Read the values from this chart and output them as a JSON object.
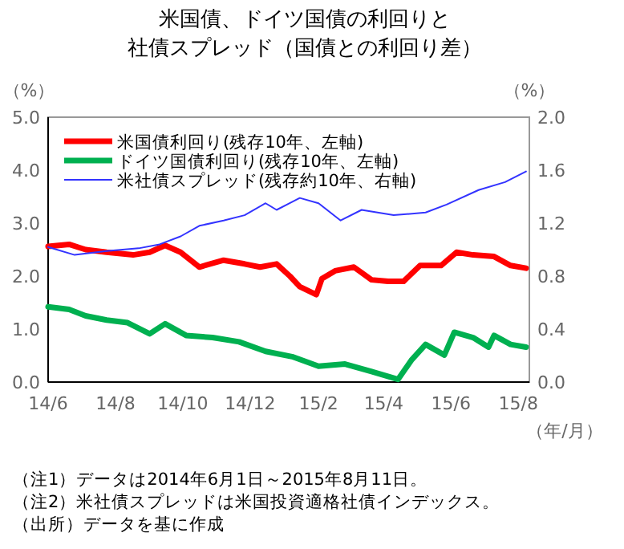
{
  "chart_data": {
    "type": "line",
    "title": "米国債、ドイツ国債の利回りと",
    "subtitle": "社債スプレッド（国債との利回り差）",
    "ylabel": "（%）",
    "y2label": "（%）",
    "xlabel": "（年/月）",
    "xlim": [
      "2014-06-01",
      "2015-08-11"
    ],
    "xticks": [
      {
        "value": "2014-06-01",
        "label": "14/6"
      },
      {
        "value": "2014-08-01",
        "label": "14/8"
      },
      {
        "value": "2014-10-01",
        "label": "14/10"
      },
      {
        "value": "2014-12-01",
        "label": "14/12"
      },
      {
        "value": "2015-02-01",
        "label": "15/2"
      },
      {
        "value": "2015-04-01",
        "label": "15/4"
      },
      {
        "value": "2015-06-01",
        "label": "15/6"
      },
      {
        "value": "2015-08-01",
        "label": "15/8"
      }
    ],
    "ylim": [
      0,
      5
    ],
    "yticks": [
      {
        "value": 0,
        "label": "0.0"
      },
      {
        "value": 1,
        "label": "1.0"
      },
      {
        "value": 2,
        "label": "2.0"
      },
      {
        "value": 3,
        "label": "3.0"
      },
      {
        "value": 4,
        "label": "4.0"
      },
      {
        "value": 5,
        "label": "5.0"
      }
    ],
    "y2lim": [
      0,
      2
    ],
    "y2ticks": [
      {
        "value": 0,
        "label": "0.0"
      },
      {
        "value": 0.4,
        "label": "0.4"
      },
      {
        "value": 0.8,
        "label": "0.8"
      },
      {
        "value": 1.2,
        "label": "1.2"
      },
      {
        "value": 1.6,
        "label": "1.6"
      },
      {
        "value": 2,
        "label": "2.0"
      }
    ],
    "legend": "top left",
    "grid": false,
    "series": [
      {
        "name": "米国債利回り(残存10年、左軸)",
        "color": "#ff0000",
        "x": [
          "2014-06-01",
          "2014-06-20",
          "2014-07-05",
          "2014-07-24",
          "2014-08-17",
          "2014-09-01",
          "2014-09-15",
          "2014-09-29",
          "2014-10-16",
          "2014-11-07",
          "2014-11-26",
          "2014-12-10",
          "2014-12-25",
          "2015-01-06",
          "2015-01-15",
          "2015-01-30",
          "2015-02-04",
          "2015-02-16",
          "2015-03-05",
          "2015-03-21",
          "2015-04-05",
          "2015-04-19",
          "2015-05-04",
          "2015-05-23",
          "2015-06-06",
          "2015-06-21",
          "2015-07-10",
          "2015-07-25",
          "2015-08-08"
        ],
        "values": [
          2.56,
          2.6,
          2.5,
          2.45,
          2.4,
          2.45,
          2.58,
          2.45,
          2.17,
          2.3,
          2.23,
          2.17,
          2.23,
          2.0,
          1.8,
          1.65,
          1.95,
          2.1,
          2.17,
          1.93,
          1.9,
          1.9,
          2.2,
          2.2,
          2.45,
          2.4,
          2.37,
          2.2,
          2.15
        ]
      },
      {
        "name": "ドイツ国債利回り(残存10年、左軸)",
        "color": "#00b050",
        "x": [
          "2014-06-01",
          "2014-06-20",
          "2014-07-05",
          "2014-07-24",
          "2014-08-12",
          "2014-09-01",
          "2014-09-15",
          "2014-10-04",
          "2014-10-28",
          "2014-11-21",
          "2014-12-15",
          "2015-01-08",
          "2015-02-01",
          "2015-02-25",
          "2015-03-21",
          "2015-04-14",
          "2015-04-26",
          "2015-05-09",
          "2015-05-26",
          "2015-06-04",
          "2015-06-21",
          "2015-07-05",
          "2015-07-10",
          "2015-07-25",
          "2015-08-08"
        ],
        "values": [
          1.42,
          1.37,
          1.25,
          1.17,
          1.12,
          0.91,
          1.1,
          0.88,
          0.84,
          0.76,
          0.58,
          0.48,
          0.3,
          0.34,
          0.2,
          0.05,
          0.41,
          0.71,
          0.51,
          0.94,
          0.84,
          0.66,
          0.88,
          0.71,
          0.66
        ]
      },
      {
        "name": "米社債スプレッド(残存約10年、右軸)",
        "color": "#3333ff",
        "axis": "y2",
        "x": [
          "2014-06-01",
          "2014-06-25",
          "2014-07-24",
          "2014-08-22",
          "2014-09-10",
          "2014-09-29",
          "2014-10-16",
          "2014-11-07",
          "2014-11-26",
          "2014-12-15",
          "2014-12-25",
          "2015-01-15",
          "2015-02-01",
          "2015-02-21",
          "2015-03-12",
          "2015-04-10",
          "2015-05-09",
          "2015-05-28",
          "2015-06-26",
          "2015-07-20",
          "2015-08-08"
        ],
        "values": [
          1.02,
          0.96,
          0.99,
          1.01,
          1.04,
          1.1,
          1.18,
          1.22,
          1.26,
          1.35,
          1.3,
          1.39,
          1.35,
          1.22,
          1.3,
          1.26,
          1.28,
          1.34,
          1.45,
          1.51,
          1.59
        ]
      }
    ],
    "annotations": [
      "（注1）データは2014年6月1日～2015年8月11日。",
      "（注2）米社債スプレッドは米国投資適格社債インデックス。",
      "（出所）データを基に作成"
    ]
  }
}
